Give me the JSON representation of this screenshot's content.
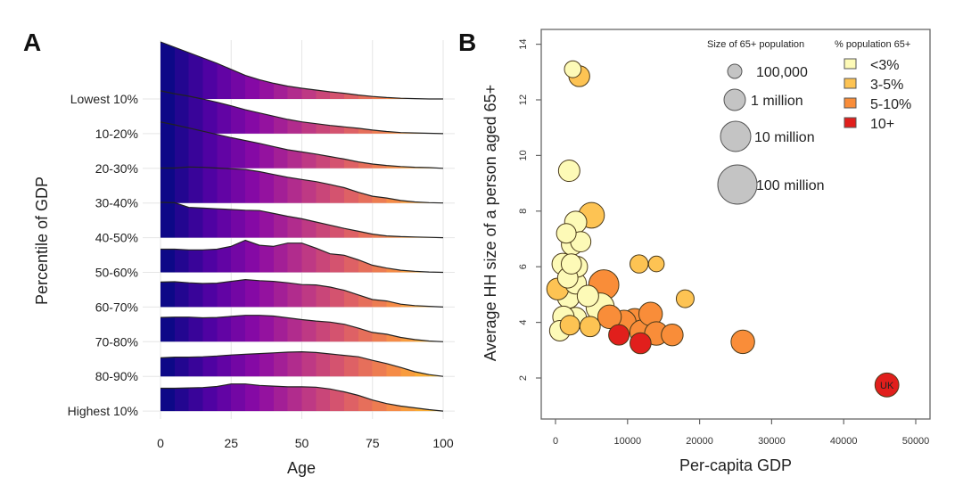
{
  "chart_data": [
    {
      "panel": "A",
      "type": "area",
      "subtype": "ridgeline",
      "xlabel": "Age",
      "ylabel": "Percentile of GDP",
      "xlim": [
        0,
        100
      ],
      "xticks": [
        "0",
        "25",
        "50",
        "75",
        "100"
      ],
      "x": [
        0,
        5,
        10,
        15,
        20,
        25,
        30,
        35,
        40,
        45,
        50,
        55,
        60,
        65,
        70,
        75,
        80,
        85,
        90,
        95,
        100
      ],
      "series": [
        {
          "name": "Lowest 10%",
          "values": [
            1.6,
            1.45,
            1.3,
            1.15,
            1.0,
            0.83,
            0.66,
            0.54,
            0.44,
            0.36,
            0.3,
            0.25,
            0.2,
            0.16,
            0.11,
            0.07,
            0.04,
            0.02,
            0.01,
            0.0,
            0.0
          ]
        },
        {
          "name": "10-20%",
          "values": [
            1.2,
            1.12,
            1.05,
            0.97,
            0.88,
            0.78,
            0.67,
            0.58,
            0.49,
            0.4,
            0.33,
            0.28,
            0.23,
            0.19,
            0.15,
            0.1,
            0.06,
            0.03,
            0.02,
            0.01,
            0.0
          ]
        },
        {
          "name": "20-30%",
          "values": [
            1.3,
            1.22,
            1.13,
            1.04,
            0.95,
            0.86,
            0.78,
            0.7,
            0.61,
            0.52,
            0.46,
            0.4,
            0.33,
            0.26,
            0.18,
            0.12,
            0.08,
            0.05,
            0.03,
            0.02,
            0.0
          ]
        },
        {
          "name": "30-40%",
          "values": [
            0.98,
            0.98,
            1.01,
            1.0,
            0.98,
            0.96,
            0.94,
            0.88,
            0.8,
            0.72,
            0.66,
            0.6,
            0.52,
            0.43,
            0.3,
            0.19,
            0.14,
            0.07,
            0.03,
            0.01,
            0.0
          ]
        },
        {
          "name": "40-50%",
          "values": [
            0.99,
            0.98,
            0.85,
            0.83,
            0.81,
            0.79,
            0.77,
            0.76,
            0.68,
            0.6,
            0.53,
            0.44,
            0.35,
            0.26,
            0.18,
            0.1,
            0.05,
            0.03,
            0.02,
            0.01,
            0.0
          ]
        },
        {
          "name": "50-60%",
          "values": [
            0.65,
            0.65,
            0.63,
            0.63,
            0.65,
            0.73,
            0.9,
            0.76,
            0.73,
            0.82,
            0.82,
            0.68,
            0.52,
            0.48,
            0.35,
            0.2,
            0.12,
            0.06,
            0.03,
            0.01,
            0.0
          ]
        },
        {
          "name": "60-70%",
          "values": [
            0.7,
            0.71,
            0.68,
            0.66,
            0.67,
            0.72,
            0.77,
            0.74,
            0.72,
            0.68,
            0.63,
            0.62,
            0.56,
            0.47,
            0.34,
            0.21,
            0.17,
            0.08,
            0.04,
            0.02,
            0.0
          ]
        },
        {
          "name": "70-80%",
          "values": [
            0.68,
            0.69,
            0.69,
            0.67,
            0.68,
            0.71,
            0.74,
            0.74,
            0.72,
            0.67,
            0.62,
            0.58,
            0.55,
            0.49,
            0.38,
            0.26,
            0.21,
            0.12,
            0.06,
            0.02,
            0.0
          ]
        },
        {
          "name": "80-90%",
          "values": [
            0.52,
            0.54,
            0.54,
            0.55,
            0.57,
            0.6,
            0.62,
            0.64,
            0.66,
            0.68,
            0.69,
            0.67,
            0.63,
            0.59,
            0.55,
            0.45,
            0.36,
            0.25,
            0.13,
            0.05,
            0.0
          ]
        },
        {
          "name": "Highest 10%",
          "values": [
            0.64,
            0.64,
            0.65,
            0.66,
            0.69,
            0.76,
            0.76,
            0.72,
            0.7,
            0.68,
            0.68,
            0.67,
            0.62,
            0.54,
            0.44,
            0.31,
            0.21,
            0.14,
            0.09,
            0.04,
            0.0
          ]
        }
      ],
      "colormap": [
        "#0d0887",
        "#5302a3",
        "#8b0aa5",
        "#b83289",
        "#db5c68",
        "#f48849",
        "#febd2a"
      ]
    },
    {
      "panel": "B",
      "type": "scatter",
      "subtype": "bubble",
      "xlabel": "Per-capita GDP",
      "ylabel": "Average HH size of a person aged 65+",
      "xlim": [
        0,
        50000
      ],
      "ylim": [
        1,
        14.5
      ],
      "xticks": [
        "0",
        "10000",
        "20000",
        "30000",
        "40000",
        "50000"
      ],
      "yticks": [
        "2",
        "4",
        "6",
        "8",
        "10",
        "12",
        "14"
      ],
      "legend_size_title": "Size of 65+ population",
      "legend_size": [
        {
          "label": "100,000",
          "pop": 100000
        },
        {
          "label": "1 million",
          "pop": 1000000
        },
        {
          "label": "10 million",
          "pop": 10000000
        },
        {
          "label": "100 million",
          "pop": 100000000
        }
      ],
      "legend_color_title": "% population 65+",
      "legend_color": [
        {
          "label": "<3%",
          "key": "lt3",
          "color": "#fdfab7"
        },
        {
          "label": "3-5%",
          "key": "3to5",
          "color": "#fdc353"
        },
        {
          "label": "5-10%",
          "key": "5to10",
          "color": "#f98d39"
        },
        {
          "label": "10+",
          "key": "10plus",
          "color": "#e11f1c"
        }
      ],
      "points": [
        {
          "gdp": 3300,
          "hh": 12.85,
          "pop": 2000000,
          "cat": "3to5"
        },
        {
          "gdp": 2400,
          "hh": 13.1,
          "pop": 400000,
          "cat": "lt3"
        },
        {
          "gdp": 1900,
          "hh": 9.45,
          "pop": 2500000,
          "cat": "lt3"
        },
        {
          "gdp": 5000,
          "hh": 7.85,
          "pop": 12000000,
          "cat": "3to5"
        },
        {
          "gdp": 1500,
          "hh": 7.2,
          "pop": 1200000,
          "cat": "lt3"
        },
        {
          "gdp": 3500,
          "hh": 6.9,
          "pop": 1600000,
          "cat": "lt3"
        },
        {
          "gdp": 2300,
          "hh": 6.8,
          "pop": 2500000,
          "cat": "lt3"
        },
        {
          "gdp": 2800,
          "hh": 7.6,
          "pop": 3500000,
          "cat": "lt3"
        },
        {
          "gdp": 3000,
          "hh": 6.0,
          "pop": 2000000,
          "cat": "lt3"
        },
        {
          "gdp": 1000,
          "hh": 6.1,
          "pop": 2500000,
          "cat": "lt3"
        },
        {
          "gdp": 2200,
          "hh": 6.1,
          "pop": 1500000,
          "cat": "lt3"
        },
        {
          "gdp": 300,
          "hh": 5.2,
          "pop": 3000000,
          "cat": "3to5"
        },
        {
          "gdp": 1700,
          "hh": 5.6,
          "pop": 1600000,
          "cat": "lt3"
        },
        {
          "gdp": 2800,
          "hh": 5.4,
          "pop": 2500000,
          "cat": "lt3"
        },
        {
          "gdp": 6700,
          "hh": 5.35,
          "pop": 30000000,
          "cat": "5to10"
        },
        {
          "gdp": 1800,
          "hh": 4.9,
          "pop": 3500000,
          "cat": "lt3"
        },
        {
          "gdp": 4500,
          "hh": 4.95,
          "pop": 2500000,
          "cat": "lt3"
        },
        {
          "gdp": 6200,
          "hh": 4.55,
          "pop": 20000000,
          "cat": "lt3"
        },
        {
          "gdp": 1100,
          "hh": 4.2,
          "pop": 2500000,
          "cat": "lt3"
        },
        {
          "gdp": 2800,
          "hh": 4.15,
          "pop": 3000000,
          "cat": "lt3"
        },
        {
          "gdp": 4800,
          "hh": 3.85,
          "pop": 1600000,
          "cat": "3to5"
        },
        {
          "gdp": 600,
          "hh": 3.7,
          "pop": 1800000,
          "cat": "lt3"
        },
        {
          "gdp": 2000,
          "hh": 3.9,
          "pop": 1200000,
          "cat": "3to5"
        },
        {
          "gdp": 7500,
          "hh": 4.2,
          "pop": 6000000,
          "cat": "5to10"
        },
        {
          "gdp": 9500,
          "hh": 4.0,
          "pop": 8000000,
          "cat": "5to10"
        },
        {
          "gdp": 11000,
          "hh": 4.05,
          "pop": 10000000,
          "cat": "5to10"
        },
        {
          "gdp": 13200,
          "hh": 4.3,
          "pop": 6000000,
          "cat": "5to10"
        },
        {
          "gdp": 12000,
          "hh": 3.65,
          "pop": 8000000,
          "cat": "5to10"
        },
        {
          "gdp": 14000,
          "hh": 3.6,
          "pop": 6000000,
          "cat": "5to10"
        },
        {
          "gdp": 16200,
          "hh": 3.55,
          "pop": 3000000,
          "cat": "5to10"
        },
        {
          "gdp": 8800,
          "hh": 3.55,
          "pop": 1800000,
          "cat": "10plus"
        },
        {
          "gdp": 11800,
          "hh": 3.25,
          "pop": 2200000,
          "cat": "10plus"
        },
        {
          "gdp": 11600,
          "hh": 6.1,
          "pop": 700000,
          "cat": "3to5"
        },
        {
          "gdp": 14000,
          "hh": 6.1,
          "pop": 250000,
          "cat": "3to5"
        },
        {
          "gdp": 18000,
          "hh": 4.85,
          "pop": 600000,
          "cat": "3to5"
        },
        {
          "gdp": 26000,
          "hh": 3.3,
          "pop": 6000000,
          "cat": "5to10"
        },
        {
          "gdp": 46000,
          "hh": 1.75,
          "pop": 7000000,
          "cat": "10plus",
          "label": "UK"
        }
      ]
    }
  ],
  "panel_labels": {
    "a": "A",
    "b": "B"
  }
}
